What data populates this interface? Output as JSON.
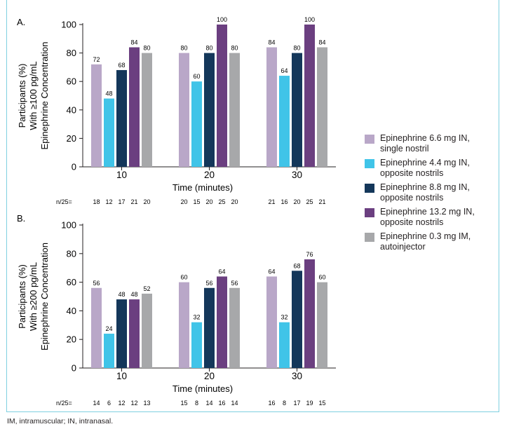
{
  "chart_data": [
    {
      "type": "bar",
      "panel_label": "A.",
      "ylabel": [
        "Participants (%)",
        "With ≥100 pg/mL",
        "Epinephrine Concentration"
      ],
      "xlabel": "Time (minutes)",
      "categories": [
        "10",
        "20",
        "30"
      ],
      "ylim": [
        0,
        100
      ],
      "yticks": [
        0,
        20,
        40,
        60,
        80,
        100
      ],
      "n_prefix": "n/25=",
      "series": [
        {
          "name": "Epinephrine 6.6 mg IN, single nostril",
          "color": "#b9a7c8",
          "values": [
            72,
            80,
            84
          ],
          "n": [
            18,
            20,
            21
          ]
        },
        {
          "name": "Epinephrine 4.4 mg IN, opposite nostrils",
          "color": "#40c4e8",
          "values": [
            48,
            60,
            64
          ],
          "n": [
            12,
            15,
            16
          ]
        },
        {
          "name": "Epinephrine 8.8 mg IN, opposite nostrils",
          "color": "#14375a",
          "values": [
            68,
            80,
            80
          ],
          "n": [
            17,
            20,
            20
          ]
        },
        {
          "name": "Epinephrine 13.2 mg IN, opposite nostrils",
          "color": "#6b3f80",
          "values": [
            84,
            100,
            100
          ],
          "n": [
            21,
            25,
            25
          ]
        },
        {
          "name": "Epinephrine 0.3 mg IM, autoinjector",
          "color": "#a7a8aa",
          "values": [
            80,
            80,
            84
          ],
          "n": [
            20,
            20,
            21
          ]
        }
      ]
    },
    {
      "type": "bar",
      "panel_label": "B.",
      "ylabel": [
        "Participants (%)",
        "With ≥200 pg/mL",
        "Epinephrine Concentration"
      ],
      "xlabel": "Time (minutes)",
      "categories": [
        "10",
        "20",
        "30"
      ],
      "ylim": [
        0,
        100
      ],
      "yticks": [
        0,
        20,
        40,
        60,
        80,
        100
      ],
      "n_prefix": "n/25=",
      "series": [
        {
          "name": "Epinephrine 6.6 mg IN, single nostril",
          "color": "#b9a7c8",
          "values": [
            56,
            60,
            64
          ],
          "n": [
            14,
            15,
            16
          ]
        },
        {
          "name": "Epinephrine 4.4 mg IN, opposite nostrils",
          "color": "#40c4e8",
          "values": [
            24,
            32,
            32
          ],
          "n": [
            6,
            8,
            8
          ]
        },
        {
          "name": "Epinephrine 8.8 mg IN, opposite nostrils",
          "color": "#14375a",
          "values": [
            48,
            56,
            68
          ],
          "n": [
            12,
            14,
            17
          ]
        },
        {
          "name": "Epinephrine 13.2 mg IN, opposite nostrils",
          "color": "#6b3f80",
          "values": [
            48,
            64,
            76
          ],
          "n": [
            12,
            16,
            19
          ]
        },
        {
          "name": "Epinephrine 0.3 mg IM, autoinjector",
          "color": "#a7a8aa",
          "values": [
            52,
            56,
            60
          ],
          "n": [
            13,
            14,
            15
          ]
        }
      ]
    }
  ],
  "legend": [
    {
      "line1": "Epinephrine 6.6 mg IN,",
      "line2": "single nostril",
      "color": "#b9a7c8"
    },
    {
      "line1": "Epinephrine 4.4 mg IN,",
      "line2": "opposite nostrils",
      "color": "#40c4e8"
    },
    {
      "line1": "Epinephrine 8.8 mg IN,",
      "line2": "opposite nostrils",
      "color": "#14375a"
    },
    {
      "line1": "Epinephrine 13.2 mg IN,",
      "line2": "opposite nostrils",
      "color": "#6b3f80"
    },
    {
      "line1": "Epinephrine 0.3 mg IM,",
      "line2": "autoinjector",
      "color": "#a7a8aa"
    }
  ],
  "footnote": "IM, intramuscular; IN, intranasal."
}
